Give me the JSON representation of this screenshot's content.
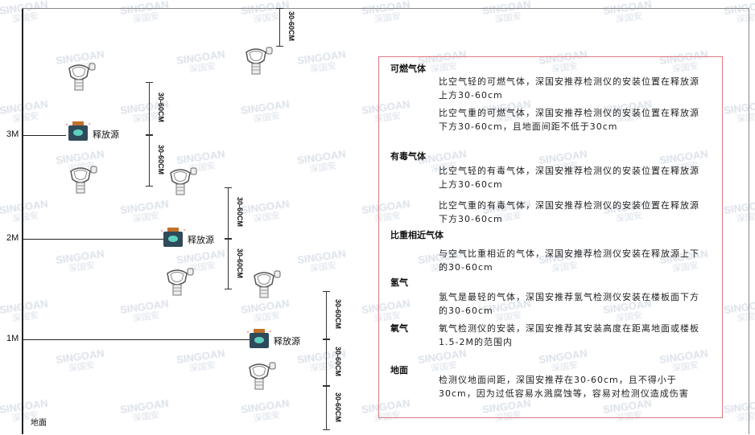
{
  "watermark": {
    "brand": "SINGOAN",
    "cn": "深国安"
  },
  "levels": [
    {
      "label": "3M"
    },
    {
      "label": "2M"
    },
    {
      "label": "1M"
    }
  ],
  "ground_label": "地面",
  "source_label": "释放源",
  "dimension_label": "30-60CM",
  "panel": {
    "sections": [
      {
        "title": "可燃气体",
        "paras": [
          "比空气轻的可燃气体，深国安推荐检测仪的安装位置在释放源上方30-60cm",
          "比空气重的可燃气体，深国安推荐检测仪的安装位置在释放源下方30-60cm，且地面间距不低于30cm"
        ]
      },
      {
        "title": "有毒气体",
        "paras": [
          "比空气轻的有毒气体，深国安推荐检测仪的安装位置在释放源上方30-60cm",
          "比空气重的有毒气体，深国安推荐检测仪的安装位置在释放源下方30-60cm"
        ]
      },
      {
        "title": "比重相近气体",
        "paras": [
          "与空气比重相近的气体，深国安推荐检测仪安装在释放源上下的30-60cm"
        ]
      },
      {
        "title": "氢气",
        "paras": [
          "氢气是最轻的气体，深国安推荐氢气检测仪安装在楼板面下方的30-60cm"
        ]
      },
      {
        "title": "氧气",
        "paras": [
          "氧气检测仪的安装，深国安推荐其安装高度在距离地面或楼板1.5-2M的范围内"
        ]
      },
      {
        "title": "地面",
        "paras": [
          "检测仪地面间距，深国安推荐在30-60cm，且不得小于30cm，因为过低容易水溅腐蚀等，容易对检测仪造成伤害"
        ]
      }
    ]
  },
  "colors": {
    "panel_border": "#e07c84",
    "source_body": "#2f4a5a",
    "source_cap": "#c2702a",
    "source_icon": "#5fd0c0"
  }
}
